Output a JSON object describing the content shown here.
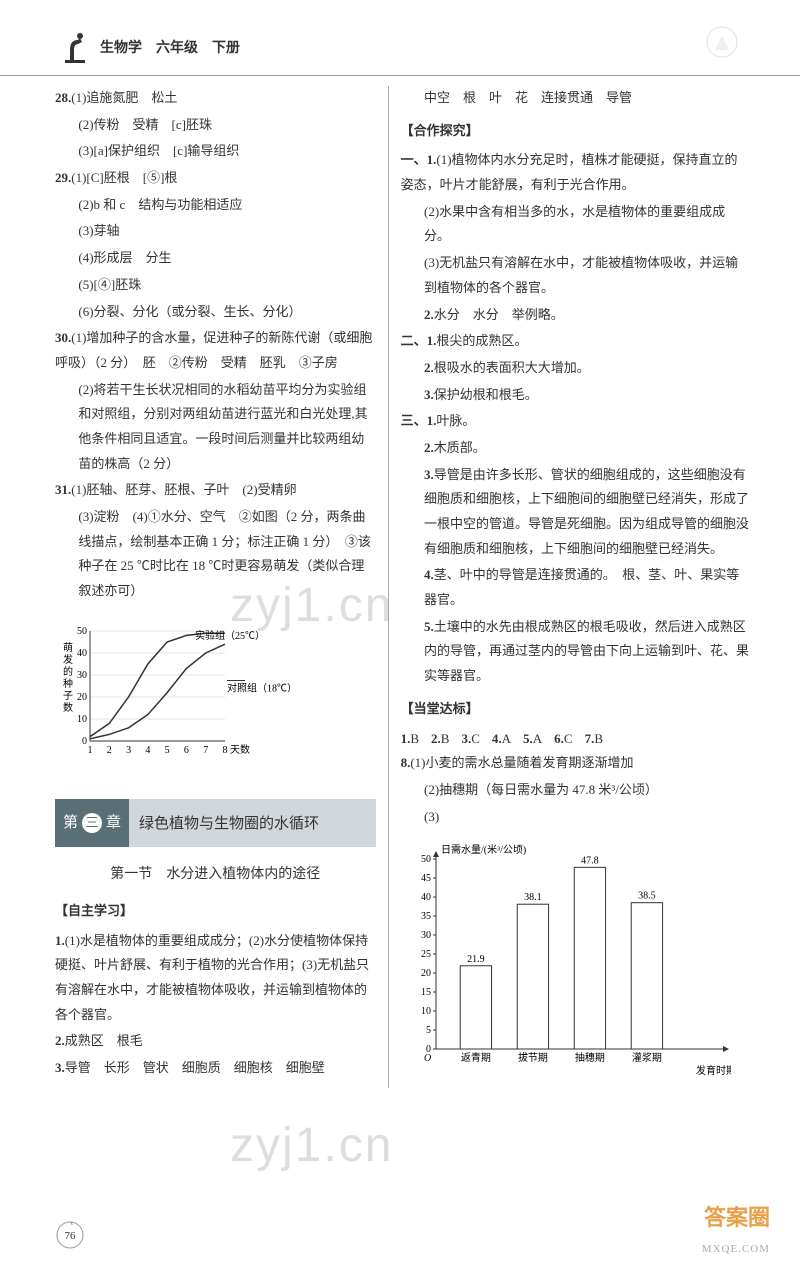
{
  "header": {
    "title": "生物学　六年级　下册"
  },
  "left": {
    "q28_label": "28.",
    "q28_1": "(1)追施氮肥　松土",
    "q28_2": "(2)传粉　受精　[c]胚珠",
    "q28_3": "(3)[a]保护组织　[c]输导组织",
    "q29_label": "29.",
    "q29_1": "(1)[C]胚根　[⑤]根",
    "q29_2": "(2)b 和 c　结构与功能相适应",
    "q29_3": "(3)芽轴",
    "q29_4": "(4)形成层　分生",
    "q29_5": "(5)[④]胚珠",
    "q29_6": "(6)分裂、分化（或分裂、生长、分化）",
    "q30_label": "30.",
    "q30_1": "(1)增加种子的含水量，促进种子的新陈代谢（或细胞呼吸）（2 分）　胚　②传粉　受精　胚乳　③子房",
    "q30_2": "(2)将若干生长状况相同的水稻幼苗平均分为实验组和对照组，分别对两组幼苗进行蓝光和白光处理,其他条件相同且适宜。一段时间后测量并比较两组幼苗的株高（2 分）",
    "q31_label": "31.",
    "q31_1": "(1)胚轴、胚芽、胚根、子叶　(2)受精卵",
    "q31_2": "(3)淀粉　(4)①水分、空气　②如图（2 分，两条曲线描点，绘制基本正确 1 分；标注正确 1 分）　③该种子在 25 ℃时比在 18 ℃时更容易萌发（类似合理叙述亦可）",
    "chart": {
      "type": "line",
      "y_label": "萌发的种子数",
      "ylim": [
        0,
        50
      ],
      "ytick_step": 10,
      "x_label": "天数",
      "x_ticks": [
        1,
        2,
        3,
        4,
        5,
        6,
        7,
        8
      ],
      "series": [
        {
          "name": "实验组（25℃）",
          "color": "#333333",
          "values": [
            2,
            8,
            20,
            35,
            45,
            48,
            49,
            49
          ]
        },
        {
          "name": "对照组（18℃）",
          "color": "#333333",
          "values": [
            1,
            3,
            6,
            12,
            22,
            33,
            40,
            44
          ]
        }
      ],
      "background": "#ffffff",
      "grid_color": "#cccccc",
      "line_width": 1.5,
      "font_size": 10
    },
    "chapter": {
      "pre": "第",
      "num": "三",
      "post": "章",
      "title": "绿色植物与生物圈的水循环"
    },
    "section_title": "第一节　水分进入植物体内的途径",
    "self_study_heading": "【自主学习】",
    "ss1_label": "1.",
    "ss1": "(1)水是植物体的重要组成成分；(2)水分使植物体保持硬挺、叶片舒展、有利于植物的光合作用；(3)无机盐只有溶解在水中，才能被植物体吸收，并运输到植物体的各个器官。",
    "ss2_label": "2.",
    "ss2": "成熟区　根毛",
    "ss3_label": "3.",
    "ss3": "导管　长形　管状　细胞质　细胞核　细胞壁"
  },
  "right": {
    "top_line": "中空　根　叶　花　连接贯通　导管",
    "coop_heading": "【合作探究】",
    "c1_label": "一、1.",
    "c1_1": "(1)植物体内水分充足时，植株才能硬挺，保持直立的姿态，叶片才能舒展，有利于光合作用。",
    "c1_2": "(2)水果中含有相当多的水，水是植物体的重要组成成分。",
    "c1_3": "(3)无机盐只有溶解在水中，才能被植物体吸收，并运输到植物体的各个器官。",
    "c2_label": "2.",
    "c2": "水分　水分　举例略。",
    "c3_label": "二、1.",
    "c3": "根尖的成熟区。",
    "c4_label": "2.",
    "c4": "根吸水的表面积大大增加。",
    "c5_label": "3.",
    "c5": "保护幼根和根毛。",
    "c6_label": "三、1.",
    "c6": "叶脉。",
    "c7_label": "2.",
    "c7": "木质部。",
    "c8_label": "3.",
    "c8": "导管是由许多长形、管状的细胞组成的，这些细胞没有细胞质和细胞核，上下细胞间的细胞壁已经消失，形成了一根中空的管道。导管是死细胞。因为组成导管的细胞没有细胞质和细胞核，上下细胞间的细胞壁已经消失。",
    "c9_label": "4.",
    "c9": "茎、叶中的导管是连接贯通的。　根、茎、叶、果实等器官。",
    "c10_label": "5.",
    "c10": "土壤中的水先由根成熟区的根毛吸收，然后进入成熟区内的导管，再通过茎内的导管由下向上运输到叶、花、果实等器官。",
    "dt_heading": "【当堂达标】",
    "dt_answers": [
      {
        "n": "1.",
        "a": "B"
      },
      {
        "n": "2.",
        "a": "B"
      },
      {
        "n": "3.",
        "a": "C"
      },
      {
        "n": "4.",
        "a": "A"
      },
      {
        "n": "5.",
        "a": "A"
      },
      {
        "n": "6.",
        "a": "C"
      },
      {
        "n": "7.",
        "a": "B"
      }
    ],
    "q8_label": "8.",
    "q8_1": "(1)小麦的需水总量随着发育期逐渐增加",
    "q8_2": "(2)抽穗期（每日需水量为 47.8 米³/公顷）",
    "q8_3_label": "(3)",
    "bar_chart": {
      "type": "bar",
      "y_label": "日需水量/(米³/公顷)",
      "ylim": [
        0,
        50
      ],
      "ytick_step": 5,
      "x_label": "发育时期",
      "categories": [
        "返青期",
        "拔节期",
        "抽穗期",
        "灌浆期"
      ],
      "values": [
        21.9,
        38.1,
        47.8,
        38.5
      ],
      "bar_fill": "#ffffff",
      "bar_stroke": "#333333",
      "bar_width": 0.55,
      "background": "#ffffff",
      "axis_color": "#333333",
      "font_size": 10
    }
  },
  "page_number": "76",
  "watermark_text": "zyj1.cn",
  "footer": {
    "brand": "答案圈",
    "url": "MXQE.COM"
  }
}
